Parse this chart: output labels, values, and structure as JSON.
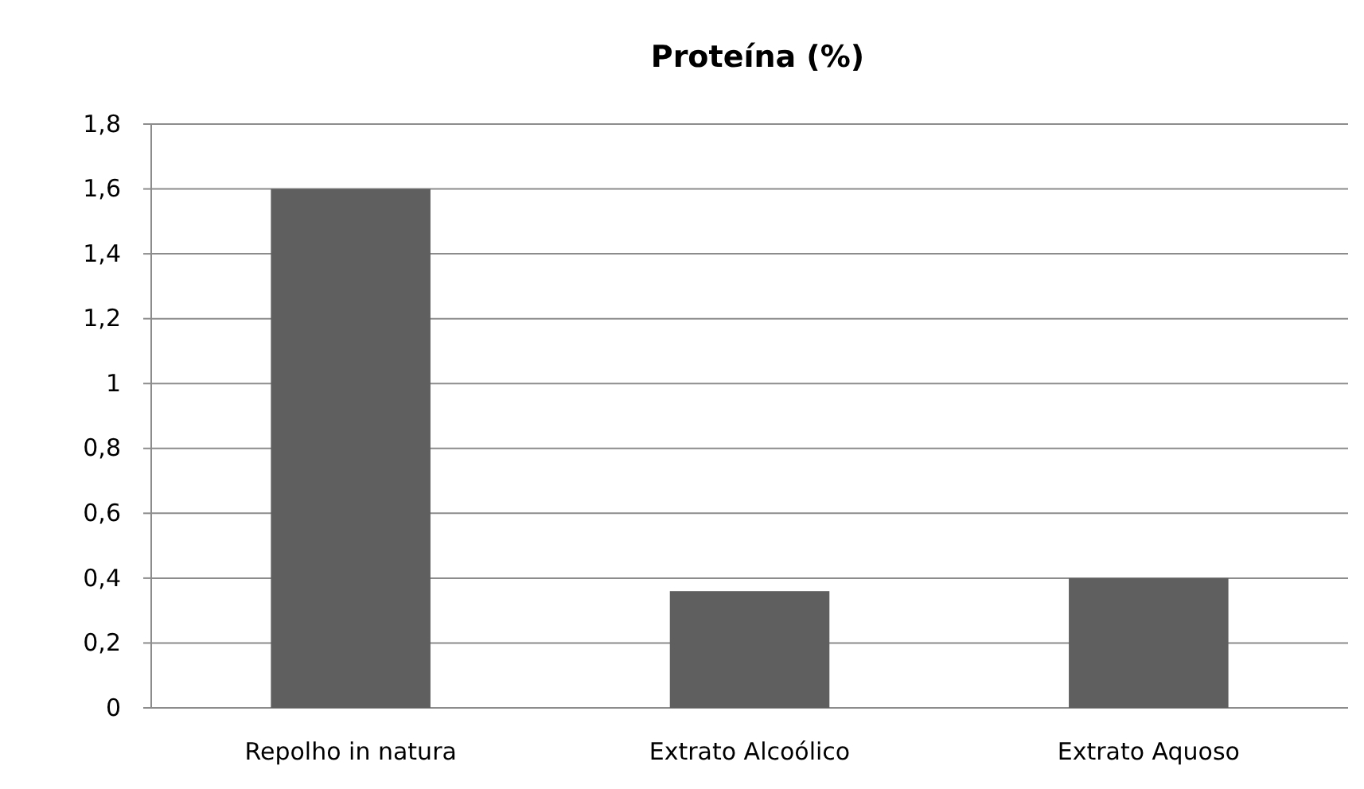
{
  "chart_data": {
    "type": "bar",
    "title": "Proteína (%)",
    "categories": [
      "Repolho in natura",
      "Extrato Alcoólico",
      "Extrato Aquoso"
    ],
    "values": [
      1.6,
      0.36,
      0.4
    ],
    "color": "#5f5f5f",
    "ylim": [
      0,
      1.8
    ],
    "yticks": [
      0,
      {
        "value": 0.2,
        "label": "0,2"
      },
      {
        "value": 0.4,
        "label": "0,4"
      },
      {
        "value": 0.6,
        "label": "0,6"
      },
      {
        "value": 0.8,
        "label": "0,8"
      },
      1,
      {
        "value": 1.2,
        "label": "1,2"
      },
      {
        "value": 1.4,
        "label": "1,4"
      },
      {
        "value": 1.6,
        "label": "1,6"
      },
      {
        "value": 1.8,
        "label": "1,8"
      }
    ],
    "grid": "y"
  }
}
